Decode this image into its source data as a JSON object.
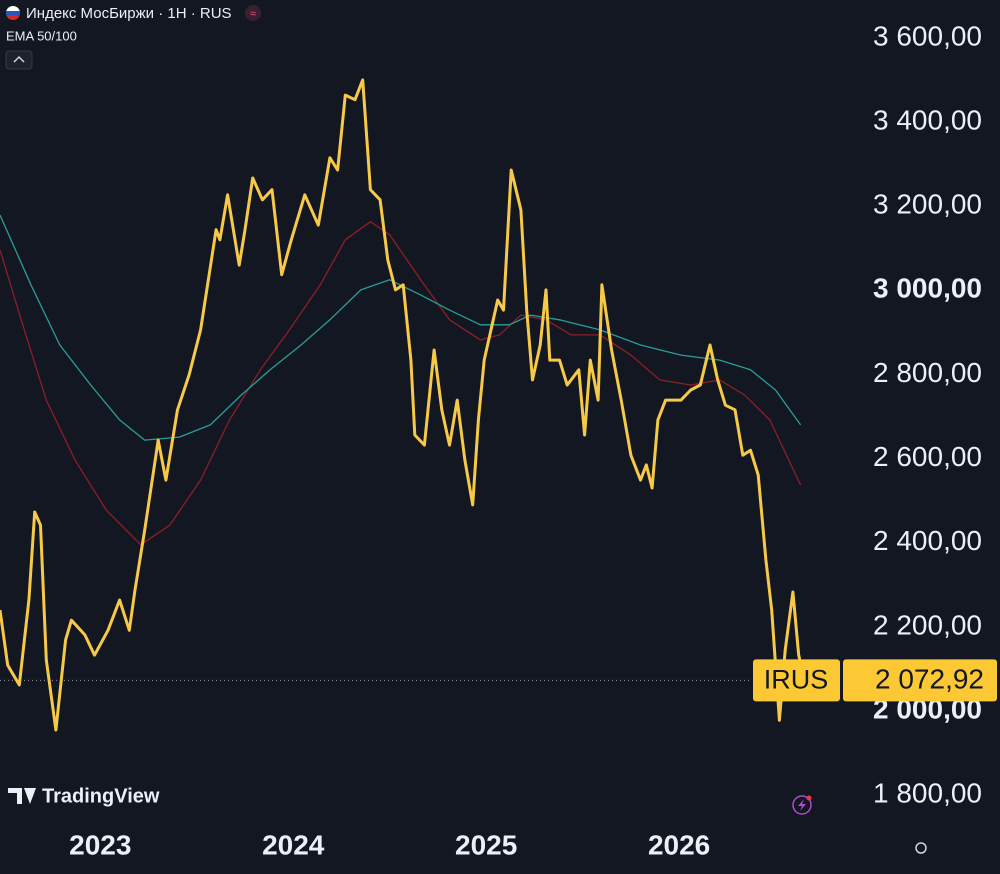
{
  "header": {
    "title": "Индекс МосБиржи · 1H · RUS",
    "indicator": "EMA 50/100",
    "watermark": "TradingView"
  },
  "chart_data": {
    "type": "line",
    "xlim": [
      2022.48,
      2026.86
    ],
    "xticks": [
      2023,
      2024,
      2025,
      2026
    ],
    "ylim": [
      1741,
      3690
    ],
    "yticks": [
      {
        "value": 1800,
        "label": "1 800,00"
      },
      {
        "value": 2000,
        "label": "2 000,00"
      },
      {
        "value": 2200,
        "label": "2 200,00"
      },
      {
        "value": 2400,
        "label": "2 400,00"
      },
      {
        "value": 2600,
        "label": "2 600,00"
      },
      {
        "value": 2800,
        "label": "2 800,00"
      },
      {
        "value": 3000,
        "label": "3 000,00"
      },
      {
        "value": 3200,
        "label": "3 200,00"
      },
      {
        "value": 3400,
        "label": "3 400,00"
      },
      {
        "value": 3600,
        "label": "3 600,00"
      }
    ],
    "series": [
      {
        "color": "#f7c948",
        "width": 3,
        "x": [
          2022.48,
          2022.52,
          2022.58,
          2022.63,
          2022.66,
          2022.69,
          2022.72,
          2022.77,
          2022.82,
          2022.85,
          2022.92,
          2022.97,
          2023.04,
          2023.1,
          2023.15,
          2023.18,
          2023.23,
          2023.3,
          2023.34,
          2023.4,
          2023.46,
          2023.52,
          2023.6,
          2023.62,
          2023.66,
          2023.72,
          2023.75,
          2023.79,
          2023.84,
          2023.89,
          2023.94,
          2023.99,
          2024.06,
          2024.13,
          2024.19,
          2024.23,
          2024.27,
          2024.32,
          2024.36,
          2024.4,
          2024.45,
          2024.49,
          2024.53,
          2024.57,
          2024.61,
          2024.63,
          2024.68,
          2024.73,
          2024.77,
          2024.81,
          2024.85,
          2024.89,
          2024.93,
          2024.96,
          2024.99,
          2025.06,
          2025.09,
          2025.13,
          2025.18,
          2025.21,
          2025.24,
          2025.28,
          2025.31,
          2025.33,
          2025.38,
          2025.42,
          2025.48,
          2025.51,
          2025.54,
          2025.58,
          2025.6,
          2025.65,
          2025.7,
          2025.75,
          2025.8,
          2025.83,
          2025.86,
          2025.89,
          2025.93,
          2026.01,
          2026.06,
          2026.11,
          2026.16,
          2026.2,
          2026.24,
          2026.29,
          2026.33,
          2026.37,
          2026.41,
          2026.45,
          2026.48,
          2026.52,
          2026.55,
          2026.59,
          2026.62,
          2026.65
        ],
        "values": [
          2240,
          2109,
          2062,
          2264,
          2473,
          2442,
          2121,
          1955,
          2169,
          2216,
          2181,
          2133,
          2192,
          2264,
          2192,
          2288,
          2430,
          2644,
          2549,
          2716,
          2799,
          2906,
          3144,
          3120,
          3227,
          3060,
          3144,
          3267,
          3215,
          3239,
          3037,
          3120,
          3227,
          3155,
          3315,
          3286,
          3464,
          3453,
          3500,
          3239,
          3215,
          3072,
          3001,
          3013,
          2834,
          2656,
          2632,
          2858,
          2716,
          2632,
          2739,
          2596,
          2490,
          2692,
          2834,
          2977,
          2953,
          3286,
          3191,
          2953,
          2787,
          2870,
          3001,
          2834,
          2834,
          2775,
          2811,
          2656,
          2834,
          2739,
          3013,
          2858,
          2739,
          2608,
          2549,
          2585,
          2530,
          2692,
          2739,
          2739,
          2763,
          2775,
          2870,
          2787,
          2727,
          2716,
          2608,
          2620,
          2561,
          2359,
          2240,
          1978,
          2145,
          2283,
          2133,
          2072.92
        ]
      },
      {
        "color": "#2a9d98",
        "width": 1.3,
        "x": [
          2022.48,
          2022.64,
          2022.79,
          2022.95,
          2023.1,
          2023.23,
          2023.41,
          2023.57,
          2023.73,
          2023.88,
          2024.04,
          2024.19,
          2024.35,
          2024.5,
          2024.66,
          2024.81,
          2024.97,
          2025.12,
          2025.23,
          2025.38,
          2025.59,
          2025.8,
          2026.01,
          2026.21,
          2026.37,
          2026.5,
          2026.63
        ],
        "values": [
          3179,
          3013,
          2870,
          2775,
          2692,
          2644,
          2651,
          2680,
          2751,
          2811,
          2870,
          2930,
          3001,
          3025,
          2989,
          2953,
          2918,
          2918,
          2941,
          2930,
          2906,
          2870,
          2846,
          2834,
          2811,
          2763,
          2680
        ]
      },
      {
        "color": "#8c1f26",
        "width": 1.3,
        "x": [
          2022.48,
          2022.59,
          2022.72,
          2022.87,
          2023.03,
          2023.21,
          2023.36,
          2023.52,
          2023.67,
          2023.83,
          2023.98,
          2024.14,
          2024.27,
          2024.4,
          2024.5,
          2024.66,
          2024.81,
          2024.97,
          2025.07,
          2025.18,
          2025.31,
          2025.44,
          2025.59,
          2025.75,
          2025.9,
          2026.06,
          2026.21,
          2026.34,
          2026.47,
          2026.63
        ],
        "values": [
          3096,
          2930,
          2739,
          2596,
          2478,
          2395,
          2442,
          2549,
          2692,
          2811,
          2906,
          3013,
          3120,
          3163,
          3132,
          3025,
          2930,
          2882,
          2894,
          2941,
          2930,
          2894,
          2894,
          2846,
          2787,
          2775,
          2787,
          2751,
          2692,
          2537
        ]
      }
    ],
    "price_tag": {
      "ticker": "IRUS",
      "value": 2072.92,
      "label": "2 072,92",
      "color": "#fcc934"
    }
  }
}
